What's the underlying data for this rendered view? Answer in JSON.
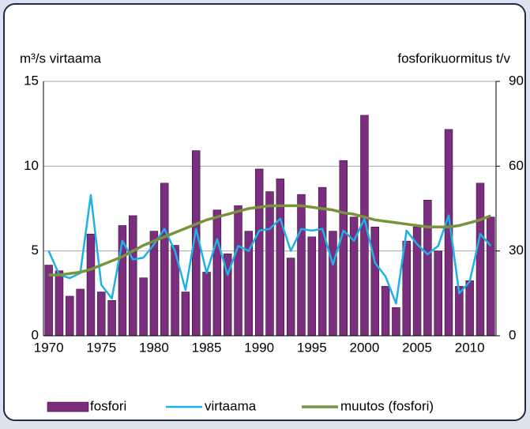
{
  "chart_data": {
    "type": "bar-line",
    "y_title": "m³/s virtaama",
    "y2_title": "fosforikuormitus t/v",
    "categories": [
      "1970",
      null,
      null,
      null,
      null,
      "1975",
      null,
      null,
      null,
      null,
      "1980",
      null,
      null,
      null,
      null,
      "1985",
      null,
      null,
      null,
      null,
      "1990",
      null,
      null,
      null,
      null,
      "1995",
      null,
      null,
      null,
      null,
      "2000",
      null,
      null,
      null,
      null,
      "2005",
      null,
      null,
      null,
      null,
      "2010",
      null,
      null
    ],
    "ylim": [
      0,
      15
    ],
    "yticks": [
      0,
      5,
      10,
      15
    ],
    "y2lim": [
      0,
      90
    ],
    "y2ticks": [
      0,
      30,
      60,
      90
    ],
    "grid": true,
    "legend": "bottom",
    "series": [
      {
        "name": "fosfori",
        "type": "bar",
        "axis": "y2",
        "color": "#7b2d7e",
        "values": [
          25,
          23,
          14,
          16.5,
          36,
          15.5,
          12.5,
          39,
          42.5,
          20.5,
          37,
          54,
          32,
          15.5,
          65.5,
          22.5,
          44.5,
          29,
          46,
          37,
          59,
          51,
          55.5,
          27.5,
          50,
          35,
          52.5,
          37,
          62,
          42,
          78,
          38.5,
          17.5,
          10,
          33.5,
          38.5,
          48,
          30,
          73,
          17.5,
          19.5,
          54,
          42
        ]
      },
      {
        "name": "virtaama",
        "type": "line",
        "color": "#1eb1e6",
        "values": [
          5.0,
          3.6,
          3.4,
          3.7,
          8.3,
          3.0,
          2.2,
          5.6,
          4.5,
          4.6,
          5.4,
          6.3,
          5.0,
          2.7,
          6.3,
          3.7,
          5.7,
          3.6,
          5.3,
          5.0,
          6.2,
          6.3,
          6.9,
          5.0,
          6.3,
          6.2,
          6.3,
          4.2,
          6.2,
          5.6,
          6.9,
          4.3,
          3.5,
          1.9,
          6.2,
          5.4,
          4.8,
          5.3,
          7.1,
          2.5,
          3.2,
          6.0,
          5.3
        ]
      },
      {
        "name": "muutos (fosfori)",
        "type": "line",
        "axis": "y2",
        "color": "#77933c",
        "values": [
          21.5,
          21.5,
          22,
          22.5,
          23.5,
          25,
          26.5,
          28,
          30,
          32,
          33.5,
          35,
          36.5,
          38,
          39.5,
          41,
          42,
          43,
          44,
          45,
          45.5,
          46,
          46,
          46,
          46,
          45.5,
          45,
          44.5,
          43.5,
          43,
          42,
          41,
          40.5,
          40,
          39.5,
          39,
          38.5,
          38.5,
          38.5,
          39,
          40,
          41,
          42.5
        ]
      }
    ]
  }
}
